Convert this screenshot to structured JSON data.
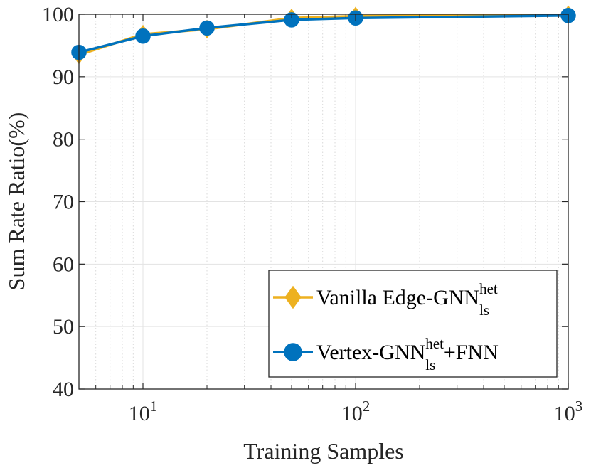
{
  "chart_data": {
    "type": "line",
    "title": "",
    "xlabel": "Training Samples",
    "ylabel": "Sum Rate Ratio(%)",
    "xscale": "log",
    "xlim": [
      5,
      1000
    ],
    "ylim": [
      40,
      100
    ],
    "grid": true,
    "x": [
      5,
      10,
      20,
      50,
      100,
      1000
    ],
    "y_ticks": [
      40,
      50,
      60,
      70,
      80,
      90,
      100
    ],
    "y_tick_labels": [
      "40",
      "50",
      "60",
      "70",
      "80",
      "90",
      "100"
    ],
    "x_ticks": [
      10,
      100,
      1000
    ],
    "x_tick_labels": [
      {
        "base": "10",
        "exp": "1"
      },
      {
        "base": "10",
        "exp": "2"
      },
      {
        "base": "10",
        "exp": "3"
      }
    ],
    "legend_position": "bottom-right",
    "series": [
      {
        "name": "Vanilla Edge-GNN",
        "name_sup": "het",
        "name_sub": "ls",
        "name_suffix": "",
        "marker": "diamond",
        "color": "#EDB120",
        "values": [
          93.5,
          96.8,
          97.6,
          99.4,
          99.7,
          99.9
        ]
      },
      {
        "name": "Vertex-GNN",
        "name_sup": "het",
        "name_sub": "ls",
        "name_suffix": "+FNN",
        "marker": "circle",
        "color": "#0072BD",
        "values": [
          93.9,
          96.5,
          97.8,
          99.1,
          99.4,
          99.8
        ]
      }
    ]
  }
}
